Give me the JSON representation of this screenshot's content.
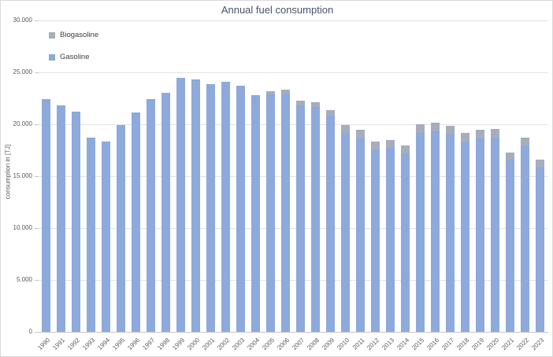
{
  "chart": {
    "title": "Annual fuel consumption",
    "y_axis_title": "consumption in [TJ]",
    "y_tick_labels": [
      "0",
      "5.000",
      "10.000",
      "15.000",
      "20.000",
      "25.000",
      "30.000"
    ],
    "legend": [
      {
        "label": "Biogasoline",
        "color": "#a6adbc"
      },
      {
        "label": "Gasoline",
        "color": "#8ea9db"
      }
    ],
    "colors": {
      "gasoline": "#8ea9db",
      "biogasoline": "#a6adbc",
      "gridline": "#e3e3e3",
      "axis_text": "#595959",
      "title_text": "#44546a"
    }
  },
  "chart_data": {
    "type": "bar",
    "stacked": true,
    "title": "Annual fuel consumption",
    "xlabel": "",
    "ylabel": "consumption in [TJ]",
    "ylim": [
      0,
      30000
    ],
    "ytick_interval": 5000,
    "grid": true,
    "legend_position": "top-left-inside",
    "number_format": "thousands-dot",
    "categories": [
      1990,
      1991,
      1992,
      1993,
      1994,
      1995,
      1996,
      1997,
      1998,
      1999,
      2000,
      2001,
      2002,
      2003,
      2004,
      2005,
      2006,
      2007,
      2008,
      2009,
      2010,
      2011,
      2012,
      2013,
      2014,
      2015,
      2016,
      2017,
      2018,
      2019,
      2020,
      2021,
      2022,
      2023
    ],
    "series": [
      {
        "name": "Gasoline",
        "color": "#8ea9db",
        "values": [
          22400,
          21850,
          21200,
          18700,
          18350,
          19900,
          21150,
          22400,
          23050,
          24500,
          24300,
          23900,
          24100,
          23750,
          22800,
          22900,
          22950,
          21800,
          21700,
          20800,
          19150,
          18650,
          17550,
          17700,
          17150,
          19200,
          19300,
          19000,
          18350,
          18650,
          18700,
          16550,
          17850,
          15850
        ]
      },
      {
        "name": "Biogasoline",
        "color": "#a6adbc",
        "values": [
          0,
          0,
          0,
          0,
          0,
          0,
          0,
          0,
          0,
          0,
          0,
          0,
          0,
          0,
          0,
          300,
          400,
          450,
          450,
          550,
          750,
          800,
          800,
          800,
          780,
          820,
          850,
          850,
          800,
          800,
          820,
          700,
          900,
          760
        ]
      }
    ]
  }
}
